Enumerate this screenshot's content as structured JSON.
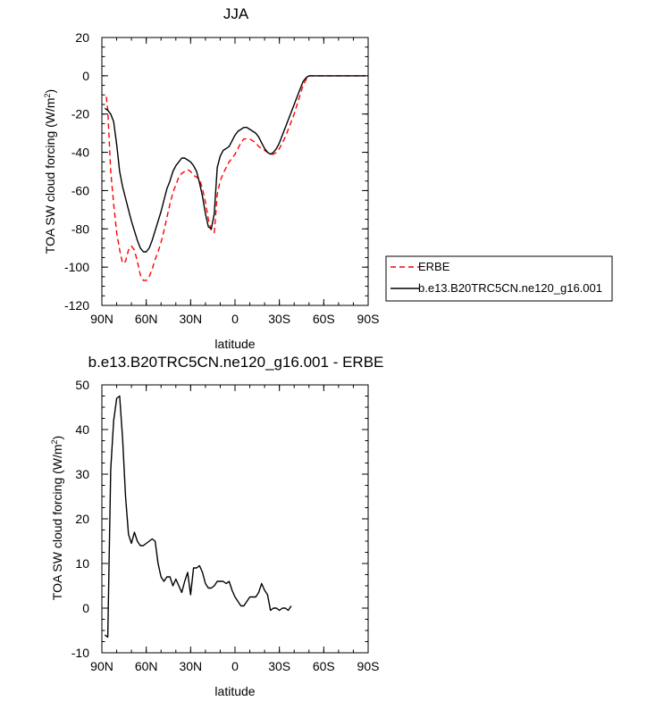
{
  "chart_data": [
    {
      "type": "line",
      "title": "JJA",
      "xlabel": "latitude",
      "ylabel": "TOA SW cloud forcing (W/m",
      "ylabel_sup": "2",
      "ylabel_tail": ")",
      "xlim": [
        90,
        -90
      ],
      "ylim": [
        -120,
        20
      ],
      "xticks": [
        {
          "value": 90,
          "label": "90N"
        },
        {
          "value": 60,
          "label": "60N"
        },
        {
          "value": 30,
          "label": "30N"
        },
        {
          "value": 0,
          "label": "0"
        },
        {
          "value": -30,
          "label": "30S"
        },
        {
          "value": -60,
          "label": "60S"
        },
        {
          "value": -90,
          "label": "90S"
        }
      ],
      "yticks": [
        {
          "value": 20,
          "label": "20"
        },
        {
          "value": 0,
          "label": "0"
        },
        {
          "value": -20,
          "label": "-20"
        },
        {
          "value": -40,
          "label": "-40"
        },
        {
          "value": -60,
          "label": "-60"
        },
        {
          "value": -80,
          "label": "-80"
        },
        {
          "value": -100,
          "label": "-100"
        },
        {
          "value": -120,
          "label": "-120"
        }
      ],
      "legend_position": "outside-right",
      "series": [
        {
          "name": "ERBE",
          "color": "#ff0000",
          "dash": "dashed",
          "points": [
            [
              87,
              -11
            ],
            [
              86,
              -18
            ],
            [
              84,
              -50
            ],
            [
              82,
              -67
            ],
            [
              80,
              -82
            ],
            [
              78,
              -91
            ],
            [
              76,
              -98
            ],
            [
              74,
              -97
            ],
            [
              72,
              -91
            ],
            [
              70,
              -89
            ],
            [
              68,
              -91
            ],
            [
              66,
              -97
            ],
            [
              64,
              -104
            ],
            [
              62,
              -107
            ],
            [
              60,
              -107
            ],
            [
              58,
              -105
            ],
            [
              56,
              -101
            ],
            [
              54,
              -96
            ],
            [
              52,
              -92
            ],
            [
              50,
              -87
            ],
            [
              48,
              -81
            ],
            [
              46,
              -74
            ],
            [
              44,
              -67
            ],
            [
              42,
              -61
            ],
            [
              40,
              -57
            ],
            [
              38,
              -53
            ],
            [
              36,
              -51
            ],
            [
              34,
              -50
            ],
            [
              32,
              -49
            ],
            [
              30,
              -50
            ],
            [
              28,
              -52
            ],
            [
              26,
              -53
            ],
            [
              24,
              -54
            ],
            [
              22,
              -59
            ],
            [
              20,
              -66
            ],
            [
              18,
              -75
            ],
            [
              16,
              -81
            ],
            [
              14,
              -82
            ],
            [
              12,
              -62
            ],
            [
              10,
              -55
            ],
            [
              8,
              -51
            ],
            [
              6,
              -48
            ],
            [
              4,
              -45
            ],
            [
              2,
              -43
            ],
            [
              0,
              -41
            ],
            [
              -2,
              -38
            ],
            [
              -4,
              -35
            ],
            [
              -6,
              -33
            ],
            [
              -8,
              -33
            ],
            [
              -10,
              -33
            ],
            [
              -12,
              -34
            ],
            [
              -14,
              -35
            ],
            [
              -16,
              -37
            ],
            [
              -18,
              -38
            ],
            [
              -20,
              -39
            ],
            [
              -22,
              -40
            ],
            [
              -24,
              -41
            ],
            [
              -26,
              -41
            ],
            [
              -28,
              -40
            ],
            [
              -30,
              -38
            ],
            [
              -32,
              -35
            ],
            [
              -34,
              -32
            ],
            [
              -36,
              -28
            ],
            [
              -38,
              -24
            ],
            [
              -40,
              -20
            ],
            [
              -42,
              -15
            ],
            [
              -44,
              -10
            ],
            [
              -46,
              -5
            ],
            [
              -48,
              -2
            ],
            [
              -50,
              0
            ],
            [
              -55,
              0
            ],
            [
              -60,
              0
            ],
            [
              -65,
              0
            ],
            [
              -70,
              0
            ],
            [
              -75,
              0
            ],
            [
              -80,
              0
            ],
            [
              -85,
              0
            ],
            [
              -88,
              0
            ]
          ]
        },
        {
          "name": "b.e13.B20TRC5CN.ne120_g16.001",
          "color": "#000000",
          "dash": "solid",
          "points": [
            [
              88,
              -17
            ],
            [
              86,
              -18
            ],
            [
              84,
              -20
            ],
            [
              82,
              -24
            ],
            [
              80,
              -36
            ],
            [
              78,
              -50
            ],
            [
              76,
              -58
            ],
            [
              74,
              -64
            ],
            [
              72,
              -70
            ],
            [
              70,
              -76
            ],
            [
              68,
              -81
            ],
            [
              66,
              -86
            ],
            [
              64,
              -90
            ],
            [
              62,
              -92
            ],
            [
              60,
              -92
            ],
            [
              58,
              -90
            ],
            [
              56,
              -86
            ],
            [
              54,
              -81
            ],
            [
              52,
              -76
            ],
            [
              50,
              -71
            ],
            [
              48,
              -65
            ],
            [
              46,
              -59
            ],
            [
              44,
              -55
            ],
            [
              42,
              -50
            ],
            [
              40,
              -47
            ],
            [
              38,
              -45
            ],
            [
              36,
              -43
            ],
            [
              34,
              -43
            ],
            [
              32,
              -44
            ],
            [
              30,
              -45
            ],
            [
              28,
              -47
            ],
            [
              26,
              -50
            ],
            [
              24,
              -56
            ],
            [
              22,
              -63
            ],
            [
              20,
              -72
            ],
            [
              18,
              -79
            ],
            [
              16,
              -80
            ],
            [
              14,
              -72
            ],
            [
              12,
              -48
            ],
            [
              10,
              -42
            ],
            [
              8,
              -39
            ],
            [
              6,
              -38
            ],
            [
              4,
              -37
            ],
            [
              2,
              -34
            ],
            [
              0,
              -31
            ],
            [
              -2,
              -29
            ],
            [
              -4,
              -28
            ],
            [
              -6,
              -27
            ],
            [
              -8,
              -27
            ],
            [
              -10,
              -28
            ],
            [
              -12,
              -29
            ],
            [
              -14,
              -30
            ],
            [
              -16,
              -32
            ],
            [
              -18,
              -35
            ],
            [
              -20,
              -38
            ],
            [
              -22,
              -40
            ],
            [
              -24,
              -41
            ],
            [
              -26,
              -40
            ],
            [
              -28,
              -38
            ],
            [
              -30,
              -35
            ],
            [
              -32,
              -31
            ],
            [
              -34,
              -27
            ],
            [
              -36,
              -23
            ],
            [
              -38,
              -19
            ],
            [
              -40,
              -15
            ],
            [
              -42,
              -11
            ],
            [
              -44,
              -7
            ],
            [
              -46,
              -3
            ],
            [
              -48,
              -1
            ],
            [
              -50,
              0
            ],
            [
              -55,
              0
            ],
            [
              -60,
              0
            ],
            [
              -65,
              0
            ],
            [
              -70,
              0
            ],
            [
              -75,
              0
            ],
            [
              -80,
              0
            ],
            [
              -85,
              0
            ],
            [
              -88,
              0
            ]
          ]
        }
      ]
    },
    {
      "type": "line",
      "title": "b.e13.B20TRC5CN.ne120_g16.001 - ERBE",
      "xlabel": "latitude",
      "ylabel": "TOA SW cloud forcing (W/m",
      "ylabel_sup": "2",
      "ylabel_tail": ")",
      "xlim": [
        90,
        -90
      ],
      "ylim": [
        -10,
        50
      ],
      "xticks": [
        {
          "value": 90,
          "label": "90N"
        },
        {
          "value": 60,
          "label": "60N"
        },
        {
          "value": 30,
          "label": "30N"
        },
        {
          "value": 0,
          "label": "0"
        },
        {
          "value": -30,
          "label": "30S"
        },
        {
          "value": -60,
          "label": "60S"
        },
        {
          "value": -90,
          "label": "90S"
        }
      ],
      "yticks": [
        {
          "value": 50,
          "label": "50"
        },
        {
          "value": 40,
          "label": "40"
        },
        {
          "value": 30,
          "label": "30"
        },
        {
          "value": 20,
          "label": "20"
        },
        {
          "value": 10,
          "label": "10"
        },
        {
          "value": 0,
          "label": "0"
        },
        {
          "value": -10,
          "label": "-10"
        }
      ],
      "series": [
        {
          "color": "#000000",
          "dash": "solid",
          "points": [
            [
              88,
              -6
            ],
            [
              86,
              -6.5
            ],
            [
              84,
              31
            ],
            [
              82,
              42
            ],
            [
              80,
              47
            ],
            [
              78,
              47.5
            ],
            [
              76,
              38
            ],
            [
              74,
              25
            ],
            [
              72,
              16.5
            ],
            [
              70,
              14.5
            ],
            [
              68,
              17
            ],
            [
              66,
              15
            ],
            [
              64,
              14
            ],
            [
              62,
              14
            ],
            [
              60,
              14.5
            ],
            [
              58,
              15
            ],
            [
              56,
              15.5
            ],
            [
              54,
              15
            ],
            [
              52,
              10
            ],
            [
              50,
              7
            ],
            [
              48,
              6
            ],
            [
              46,
              7
            ],
            [
              44,
              7
            ],
            [
              42,
              5
            ],
            [
              40,
              6.5
            ],
            [
              38,
              5
            ],
            [
              36,
              3.5
            ],
            [
              34,
              6
            ],
            [
              32,
              8
            ],
            [
              30,
              3
            ],
            [
              28,
              9
            ],
            [
              26,
              9
            ],
            [
              24,
              9.5
            ],
            [
              22,
              8
            ],
            [
              20,
              5.5
            ],
            [
              18,
              4.5
            ],
            [
              16,
              4.5
            ],
            [
              14,
              5
            ],
            [
              12,
              6
            ],
            [
              10,
              6
            ],
            [
              8,
              6
            ],
            [
              6,
              5.5
            ],
            [
              4,
              6
            ],
            [
              2,
              4
            ],
            [
              0,
              2.5
            ],
            [
              -2,
              1.5
            ],
            [
              -4,
              0.5
            ],
            [
              -6,
              0.5
            ],
            [
              -8,
              1.5
            ],
            [
              -10,
              2.5
            ],
            [
              -12,
              2.5
            ],
            [
              -14,
              2.5
            ],
            [
              -16,
              3.5
            ],
            [
              -18,
              5.5
            ],
            [
              -20,
              4
            ],
            [
              -22,
              3
            ],
            [
              -24,
              -0.5
            ],
            [
              -26,
              0
            ],
            [
              -28,
              0
            ],
            [
              -30,
              -0.5
            ],
            [
              -32,
              0
            ],
            [
              -34,
              0
            ],
            [
              -36,
              -0.5
            ],
            [
              -38,
              0.5
            ]
          ]
        }
      ]
    }
  ]
}
